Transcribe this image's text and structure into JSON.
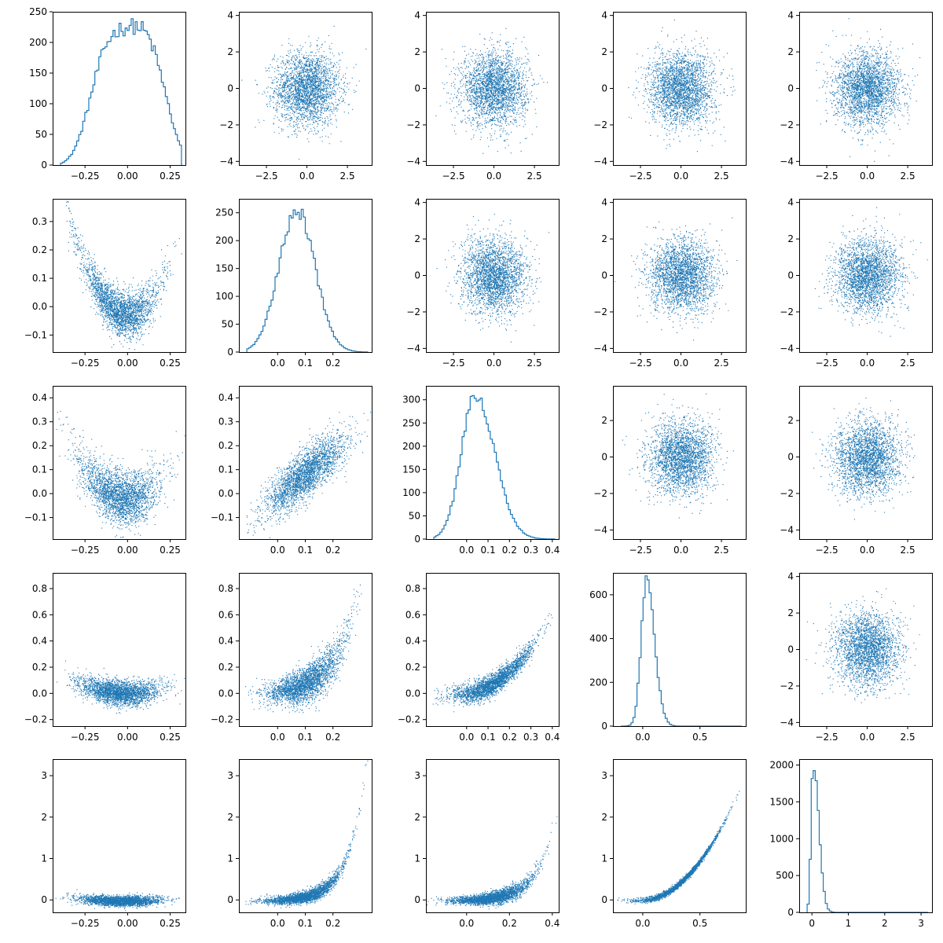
{
  "chart_data": {
    "type": "scatter",
    "layout": "pair-plot-grid",
    "rows": 5,
    "cols": 5,
    "color": "#1f77b4",
    "grid": false,
    "legend": "none",
    "panels": [
      {
        "row": 0,
        "col": 0,
        "kind": "hist",
        "xlim": [
          -0.44,
          0.34
        ],
        "ylim": [
          0,
          250
        ],
        "xticks": [
          -0.25,
          0.0,
          0.25
        ],
        "xtick_labels": [
          "−0.25",
          "0.00",
          "0.25"
        ],
        "yticks": [
          0,
          50,
          100,
          150,
          200,
          250
        ],
        "ytick_labels": [
          "0",
          "50",
          "100",
          "150",
          "200",
          "250"
        ],
        "profile": {
          "type": "platykurtic",
          "center": 0.0,
          "width": 0.2,
          "peak": 225,
          "skew": 0.3
        }
      },
      {
        "row": 0,
        "col": 1,
        "kind": "scatter",
        "xlim": [
          -4.2,
          4.0
        ],
        "ylim": [
          -4.2,
          4.2
        ],
        "xticks": [
          -2.5,
          0.0,
          2.5
        ],
        "xtick_labels": [
          "−2.5",
          "0.0",
          "2.5"
        ],
        "yticks": [
          -4,
          -2,
          0,
          2,
          4
        ],
        "ytick_labels": [
          "−4",
          "−2",
          "0",
          "2",
          "4"
        ],
        "shape": {
          "type": "normal",
          "sx": 1,
          "sy": 1
        }
      },
      {
        "row": 0,
        "col": 2,
        "kind": "scatter",
        "xlim": [
          -4.2,
          4.0
        ],
        "ylim": [
          -4.2,
          4.2
        ],
        "xticks": [
          -2.5,
          0.0,
          2.5
        ],
        "xtick_labels": [
          "−2.5",
          "0.0",
          "2.5"
        ],
        "yticks": [
          -4,
          -2,
          0,
          2,
          4
        ],
        "ytick_labels": [
          "−4",
          "−2",
          "0",
          "2",
          "4"
        ],
        "shape": {
          "type": "normal",
          "sx": 1,
          "sy": 1
        }
      },
      {
        "row": 0,
        "col": 3,
        "kind": "scatter",
        "xlim": [
          -4.2,
          4.0
        ],
        "ylim": [
          -4.2,
          4.2
        ],
        "xticks": [
          -2.5,
          0.0,
          2.5
        ],
        "xtick_labels": [
          "−2.5",
          "0.0",
          "2.5"
        ],
        "yticks": [
          -4,
          -2,
          0,
          2,
          4
        ],
        "ytick_labels": [
          "−4",
          "−2",
          "0",
          "2",
          "4"
        ],
        "shape": {
          "type": "normal",
          "sx": 1,
          "sy": 1
        }
      },
      {
        "row": 0,
        "col": 4,
        "kind": "scatter",
        "xlim": [
          -4.2,
          4.0
        ],
        "ylim": [
          -4.2,
          4.2
        ],
        "xticks": [
          -2.5,
          0.0,
          2.5
        ],
        "xtick_labels": [
          "−2.5",
          "0.0",
          "2.5"
        ],
        "yticks": [
          -4,
          -2,
          0,
          2,
          4
        ],
        "ytick_labels": [
          "−4",
          "−2",
          "0",
          "2",
          "4"
        ],
        "shape": {
          "type": "normal",
          "sx": 1,
          "sy": 1
        }
      },
      {
        "row": 1,
        "col": 0,
        "kind": "scatter",
        "xlim": [
          -0.44,
          0.34
        ],
        "ylim": [
          -0.16,
          0.38
        ],
        "xticks": [
          -0.25,
          0.0,
          0.25
        ],
        "xtick_labels": [
          "−0.25",
          "0.00",
          "0.25"
        ],
        "yticks": [
          -0.1,
          0.0,
          0.1,
          0.2,
          0.3
        ],
        "ytick_labels": [
          "−0.1",
          "0.0",
          "0.1",
          "0.2",
          "0.3"
        ],
        "shape": {
          "type": "parabola",
          "a": 2.8,
          "c": -0.03,
          "noise": 0.04
        }
      },
      {
        "row": 1,
        "col": 1,
        "kind": "hist",
        "xlim": [
          -0.14,
          0.34
        ],
        "ylim": [
          0,
          275
        ],
        "xticks": [
          0.0,
          0.1,
          0.2
        ],
        "xtick_labels": [
          "0.0",
          "0.1",
          "0.2"
        ],
        "yticks": [
          0,
          50,
          100,
          150,
          200,
          250
        ],
        "ytick_labels": [
          "0",
          "50",
          "100",
          "150",
          "200",
          "250"
        ],
        "profile": {
          "type": "normal",
          "center": 0.07,
          "width": 0.065,
          "peak": 255,
          "skew": 0
        }
      },
      {
        "row": 1,
        "col": 2,
        "kind": "scatter",
        "xlim": [
          -4.2,
          4.0
        ],
        "ylim": [
          -4.2,
          4.2
        ],
        "xticks": [
          -2.5,
          0.0,
          2.5
        ],
        "xtick_labels": [
          "−2.5",
          "0.0",
          "2.5"
        ],
        "yticks": [
          -4,
          -2,
          0,
          2,
          4
        ],
        "ytick_labels": [
          "−4",
          "−2",
          "0",
          "2",
          "4"
        ],
        "shape": {
          "type": "normal",
          "sx": 1,
          "sy": 1
        }
      },
      {
        "row": 1,
        "col": 3,
        "kind": "scatter",
        "xlim": [
          -4.2,
          4.0
        ],
        "ylim": [
          -4.2,
          4.2
        ],
        "xticks": [
          -2.5,
          0.0,
          2.5
        ],
        "xtick_labels": [
          "−2.5",
          "0.0",
          "2.5"
        ],
        "yticks": [
          -4,
          -2,
          0,
          2,
          4
        ],
        "ytick_labels": [
          "−4",
          "−2",
          "0",
          "2",
          "4"
        ],
        "shape": {
          "type": "normal",
          "sx": 1,
          "sy": 1
        }
      },
      {
        "row": 1,
        "col": 4,
        "kind": "scatter",
        "xlim": [
          -4.2,
          4.0
        ],
        "ylim": [
          -4.2,
          4.2
        ],
        "xticks": [
          -2.5,
          0.0,
          2.5
        ],
        "xtick_labels": [
          "−2.5",
          "0.0",
          "2.5"
        ],
        "yticks": [
          -4,
          -2,
          0,
          2,
          4
        ],
        "ytick_labels": [
          "−4",
          "−2",
          "0",
          "2",
          "4"
        ],
        "shape": {
          "type": "normal",
          "sx": 1,
          "sy": 1
        }
      },
      {
        "row": 2,
        "col": 0,
        "kind": "scatter",
        "xlim": [
          -0.44,
          0.34
        ],
        "ylim": [
          -0.19,
          0.45
        ],
        "xticks": [
          -0.25,
          0.0,
          0.25
        ],
        "xtick_labels": [
          "−0.25",
          "0.00",
          "0.25"
        ],
        "yticks": [
          -0.1,
          0.0,
          0.1,
          0.2,
          0.3,
          0.4
        ],
        "ytick_labels": [
          "−0.1",
          "0.0",
          "0.1",
          "0.2",
          "0.3",
          "0.4"
        ],
        "shape": {
          "type": "parabola",
          "a": 1.8,
          "c": -0.02,
          "noise": 0.055
        }
      },
      {
        "row": 2,
        "col": 1,
        "kind": "scatter",
        "xlim": [
          -0.14,
          0.34
        ],
        "ylim": [
          -0.19,
          0.45
        ],
        "xticks": [
          0.0,
          0.1,
          0.2
        ],
        "xtick_labels": [
          "0.0",
          "0.1",
          "0.2"
        ],
        "yticks": [
          -0.1,
          0.0,
          0.1,
          0.2,
          0.3,
          0.4
        ],
        "ytick_labels": [
          "−0.1",
          "0.0",
          "0.1",
          "0.2",
          "0.3",
          "0.4"
        ],
        "shape": {
          "type": "linear",
          "slope": 0.9,
          "c": -0.01,
          "noise": 0.05
        }
      },
      {
        "row": 2,
        "col": 2,
        "kind": "hist",
        "xlim": [
          -0.19,
          0.43
        ],
        "ylim": [
          0,
          330
        ],
        "xticks": [
          0.0,
          0.1,
          0.2,
          0.3,
          0.4
        ],
        "xtick_labels": [
          "0.0",
          "0.1",
          "0.2",
          "0.3",
          "0.4"
        ],
        "yticks": [
          0,
          50,
          100,
          150,
          200,
          250,
          300
        ],
        "ytick_labels": [
          "0",
          "50",
          "100",
          "150",
          "200",
          "250",
          "300"
        ],
        "profile": {
          "type": "normal",
          "center": 0.04,
          "width": 0.065,
          "peak": 305,
          "skew": 0.4
        }
      },
      {
        "row": 2,
        "col": 3,
        "kind": "scatter",
        "xlim": [
          -4.2,
          4.0
        ],
        "ylim": [
          -4.5,
          3.9
        ],
        "xticks": [
          -2.5,
          0.0,
          2.5
        ],
        "xtick_labels": [
          "−2.5",
          "0.0",
          "2.5"
        ],
        "yticks": [
          -4,
          -2,
          0,
          2
        ],
        "ytick_labels": [
          "−4",
          "−2",
          "0",
          "2"
        ],
        "shape": {
          "type": "normal",
          "sx": 1,
          "sy": 1
        }
      },
      {
        "row": 2,
        "col": 4,
        "kind": "scatter",
        "xlim": [
          -4.2,
          4.0
        ],
        "ylim": [
          -4.5,
          3.9
        ],
        "xticks": [
          -2.5,
          0.0,
          2.5
        ],
        "xtick_labels": [
          "−2.5",
          "0.0",
          "2.5"
        ],
        "yticks": [
          -4,
          -2,
          0,
          2
        ],
        "ytick_labels": [
          "−4",
          "−2",
          "0",
          "2"
        ],
        "shape": {
          "type": "normal",
          "sx": 1,
          "sy": 1
        }
      },
      {
        "row": 3,
        "col": 0,
        "kind": "scatter",
        "xlim": [
          -0.44,
          0.34
        ],
        "ylim": [
          -0.25,
          0.92
        ],
        "xticks": [
          -0.25,
          0.0,
          0.25
        ],
        "xtick_labels": [
          "−0.25",
          "0.00",
          "0.25"
        ],
        "yticks": [
          -0.2,
          0.0,
          0.2,
          0.4,
          0.6,
          0.8
        ],
        "ytick_labels": [
          "−0.2",
          "0.0",
          "0.2",
          "0.4",
          "0.6",
          "0.8"
        ],
        "shape": {
          "type": "parabola",
          "a": 0.9,
          "c": 0.0,
          "noise": 0.045
        }
      },
      {
        "row": 3,
        "col": 1,
        "kind": "scatter",
        "xlim": [
          -0.14,
          0.34
        ],
        "ylim": [
          -0.25,
          0.92
        ],
        "xticks": [
          0.0,
          0.1,
          0.2
        ],
        "xtick_labels": [
          "0.0",
          "0.1",
          "0.2"
        ],
        "yticks": [
          -0.2,
          0.0,
          0.2,
          0.4,
          0.6,
          0.8
        ],
        "ytick_labels": [
          "−0.2",
          "0.0",
          "0.2",
          "0.4",
          "0.6",
          "0.8"
        ],
        "shape": {
          "type": "exp",
          "a": 0.03,
          "k": 11,
          "c": -0.02,
          "noise": 0.05
        }
      },
      {
        "row": 3,
        "col": 2,
        "kind": "scatter",
        "xlim": [
          -0.19,
          0.43
        ],
        "ylim": [
          -0.25,
          0.92
        ],
        "xticks": [
          0.0,
          0.1,
          0.2,
          0.3,
          0.4
        ],
        "xtick_labels": [
          "0.0",
          "0.1",
          "0.2",
          "0.3",
          "0.4"
        ],
        "yticks": [
          -0.2,
          0.0,
          0.2,
          0.4,
          0.6,
          0.8
        ],
        "ytick_labels": [
          "−0.2",
          "0.0",
          "0.2",
          "0.4",
          "0.6",
          "0.8"
        ],
        "shape": {
          "type": "quad",
          "a": 3.2,
          "b": 0.2,
          "c": 0.0,
          "noise": 0.04
        }
      },
      {
        "row": 3,
        "col": 3,
        "kind": "hist",
        "xlim": [
          -0.26,
          0.9
        ],
        "ylim": [
          0,
          700
        ],
        "xticks": [
          0.0,
          0.5
        ],
        "xtick_labels": [
          "0.0",
          "0.5"
        ],
        "yticks": [
          0,
          200,
          400,
          600
        ],
        "ytick_labels": [
          "0",
          "200",
          "400",
          "600"
        ],
        "profile": {
          "type": "lognormal",
          "center": 0.03,
          "width": 0.045,
          "peak": 660,
          "skew": 1.6
        }
      },
      {
        "row": 3,
        "col": 4,
        "kind": "scatter",
        "xlim": [
          -4.2,
          4.0
        ],
        "ylim": [
          -4.2,
          4.2
        ],
        "xticks": [
          -2.5,
          0.0,
          2.5
        ],
        "xtick_labels": [
          "−2.5",
          "0.0",
          "2.5"
        ],
        "yticks": [
          -4,
          -2,
          0,
          2,
          4
        ],
        "ytick_labels": [
          "−4",
          "−2",
          "0",
          "2",
          "4"
        ],
        "shape": {
          "type": "normal",
          "sx": 1,
          "sy": 1
        }
      },
      {
        "row": 4,
        "col": 0,
        "kind": "scatter",
        "xlim": [
          -0.44,
          0.34
        ],
        "ylim": [
          -0.3,
          3.4
        ],
        "xticks": [
          -0.25,
          0.0,
          0.25
        ],
        "xtick_labels": [
          "−0.25",
          "0.00",
          "0.25"
        ],
        "yticks": [
          0,
          1,
          2,
          3
        ],
        "ytick_labels": [
          "0",
          "1",
          "2",
          "3"
        ],
        "shape": {
          "type": "parabola",
          "a": 0.6,
          "c": -0.02,
          "noise": 0.06
        }
      },
      {
        "row": 4,
        "col": 1,
        "kind": "scatter",
        "xlim": [
          -0.14,
          0.34
        ],
        "ylim": [
          -0.3,
          3.4
        ],
        "xticks": [
          0.0,
          0.1,
          0.2
        ],
        "xtick_labels": [
          "0.0",
          "0.1",
          "0.2"
        ],
        "yticks": [
          0,
          1,
          2,
          3
        ],
        "ytick_labels": [
          "0",
          "1",
          "2",
          "3"
        ],
        "shape": {
          "type": "exp",
          "a": 0.02,
          "k": 16,
          "c": -0.02,
          "noise": 0.05
        }
      },
      {
        "row": 4,
        "col": 2,
        "kind": "scatter",
        "xlim": [
          -0.19,
          0.43
        ],
        "ylim": [
          -0.3,
          3.4
        ],
        "xticks": [
          0.0,
          0.2,
          0.4
        ],
        "xtick_labels": [
          "0.0",
          "0.2",
          "0.4"
        ],
        "yticks": [
          0,
          1,
          2,
          3
        ],
        "ytick_labels": [
          "0",
          "1",
          "2",
          "3"
        ],
        "shape": {
          "type": "exp",
          "a": 0.02,
          "k": 11,
          "c": -0.02,
          "noise": 0.05
        }
      },
      {
        "row": 4,
        "col": 3,
        "kind": "scatter",
        "xlim": [
          -0.26,
          0.9
        ],
        "ylim": [
          -0.3,
          3.4
        ],
        "xticks": [
          0.0,
          0.5
        ],
        "xtick_labels": [
          "0.0",
          "0.5"
        ],
        "yticks": [
          0,
          1,
          2,
          3
        ],
        "ytick_labels": [
          "0",
          "1",
          "2",
          "3"
        ],
        "shape": {
          "type": "quad",
          "a": 3.6,
          "b": 0.1,
          "c": 0.0,
          "noise": 0.035
        }
      },
      {
        "row": 4,
        "col": 4,
        "kind": "hist",
        "xlim": [
          -0.35,
          3.3
        ],
        "ylim": [
          0,
          2080
        ],
        "xticks": [
          0,
          1,
          2,
          3
        ],
        "xtick_labels": [
          "0",
          "1",
          "2",
          "3"
        ],
        "yticks": [
          0,
          500,
          1000,
          1500,
          2000
        ],
        "ytick_labels": [
          "0",
          "500",
          "1000",
          "1500",
          "2000"
        ],
        "profile": {
          "type": "lognormal",
          "center": 0.04,
          "width": 0.06,
          "peak": 2000,
          "skew": 2.5
        }
      }
    ]
  }
}
